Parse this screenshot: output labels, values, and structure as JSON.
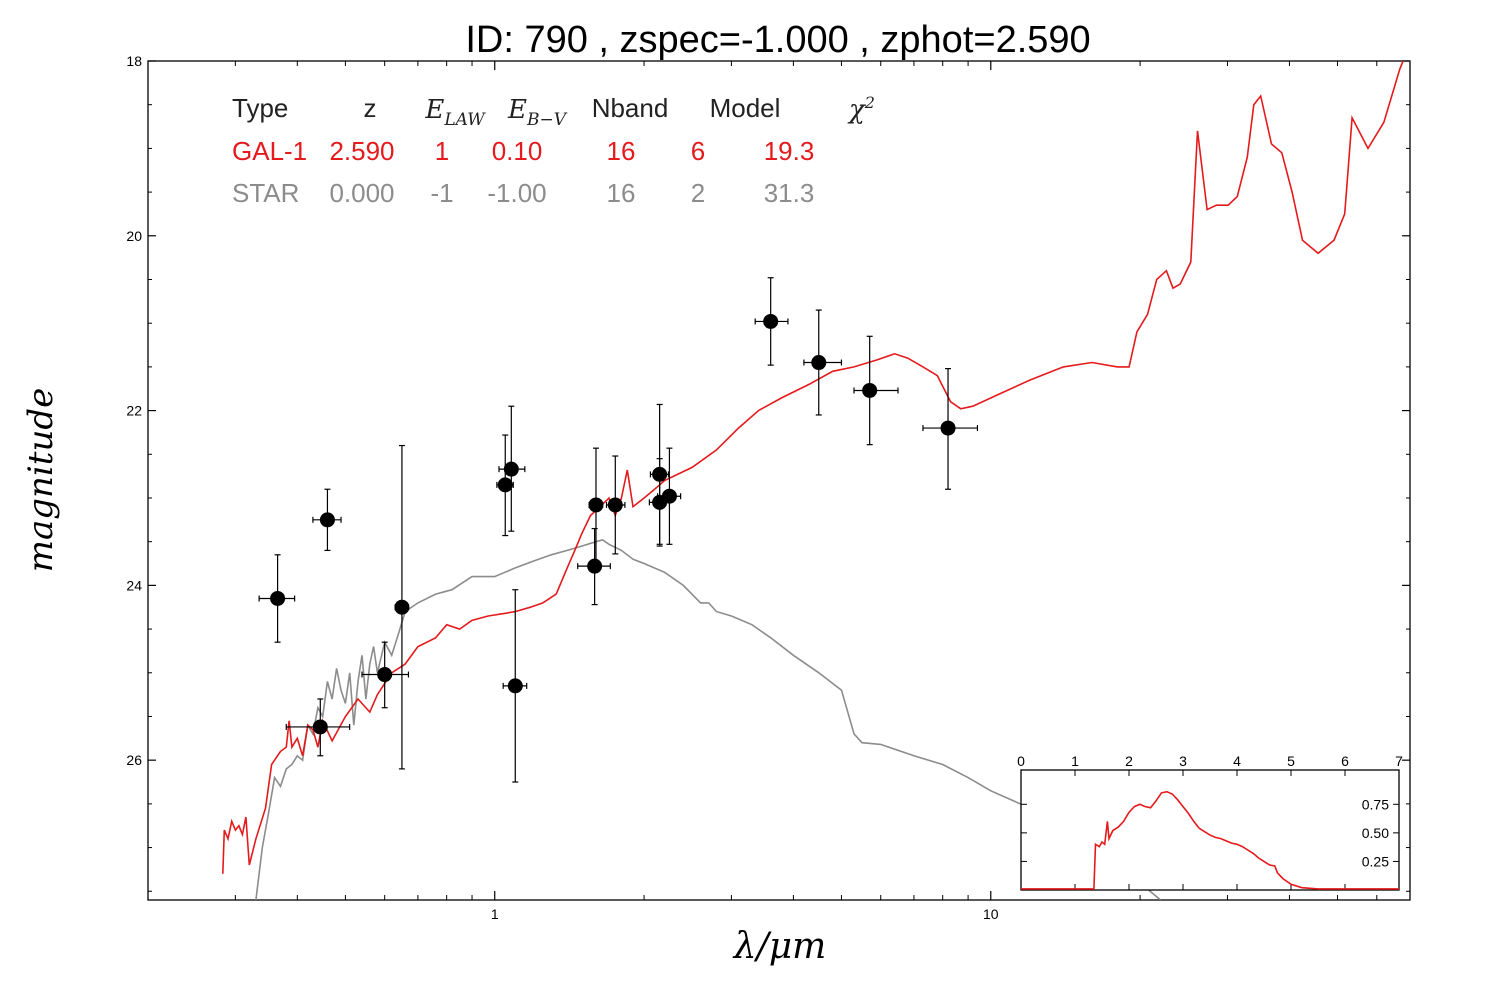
{
  "chart_data": {
    "type": "scatter",
    "title": "ID:  790   , zspec=-1.000 , zphot=2.590",
    "xlabel": "λ/μm",
    "ylabel": "magnitude",
    "x_scale": "log",
    "xlim": [
      0.2,
      70
    ],
    "ylim": [
      27.6,
      18
    ],
    "y_inverted": true,
    "xticks": [
      {
        "value": 1,
        "label": "1"
      },
      {
        "value": 10,
        "label": "10"
      }
    ],
    "yticks": [
      {
        "value": 18,
        "label": "18"
      },
      {
        "value": 20,
        "label": "20"
      },
      {
        "value": 22,
        "label": "22"
      },
      {
        "value": 24,
        "label": "24"
      },
      {
        "value": 26,
        "label": "26"
      }
    ],
    "colors": {
      "galaxy": "#e41a1c",
      "star": "#8c8c8c",
      "points": "#000000"
    },
    "legend_table": {
      "headers": [
        "Type",
        "z",
        "E_LAW",
        "E_B−V",
        "Nband",
        "Model",
        "χ²"
      ],
      "rows": [
        {
          "cells": [
            "GAL-1",
            "2.590",
            "1",
            "0.10",
            "16",
            "6",
            "19.3"
          ],
          "color": "#e41a1c"
        },
        {
          "cells": [
            "STAR",
            "0.000",
            "-1",
            "-1.00",
            "16",
            "2",
            "31.3"
          ],
          "color": "#8c8c8c"
        }
      ]
    },
    "points": [
      {
        "x": 0.365,
        "y": 24.15,
        "xerr": [
          0.335,
          0.395
        ],
        "yerr": [
          23.65,
          24.65
        ]
      },
      {
        "x": 0.445,
        "y": 25.62,
        "xerr": [
          0.38,
          0.51
        ],
        "yerr": [
          25.3,
          25.95
        ]
      },
      {
        "x": 0.46,
        "y": 23.25,
        "xerr": [
          0.43,
          0.49
        ],
        "yerr": [
          22.9,
          23.6
        ]
      },
      {
        "x": 0.6,
        "y": 25.02,
        "xerr": [
          0.54,
          0.67
        ],
        "yerr": [
          24.65,
          25.4
        ]
      },
      {
        "x": 0.65,
        "y": 24.25,
        "xerr": [
          0.63,
          0.67
        ],
        "yerr": [
          22.4,
          26.1
        ]
      },
      {
        "x": 1.05,
        "y": 22.85,
        "xerr": [
          1.01,
          1.09
        ],
        "yerr": [
          22.28,
          23.43
        ]
      },
      {
        "x": 1.08,
        "y": 22.67,
        "xerr": [
          1.02,
          1.15
        ],
        "yerr": [
          21.95,
          23.38
        ]
      },
      {
        "x": 1.1,
        "y": 25.15,
        "xerr": [
          1.04,
          1.16
        ],
        "yerr": [
          24.05,
          26.25
        ]
      },
      {
        "x": 1.59,
        "y": 23.78,
        "xerr": [
          1.47,
          1.71
        ],
        "yerr": [
          23.35,
          24.22
        ]
      },
      {
        "x": 1.6,
        "y": 23.08,
        "xerr": [
          1.55,
          1.65
        ],
        "yerr": [
          22.43,
          23.73
        ]
      },
      {
        "x": 1.75,
        "y": 23.08,
        "xerr": [
          1.68,
          1.83
        ],
        "yerr": [
          22.52,
          23.64
        ]
      },
      {
        "x": 2.15,
        "y": 22.73,
        "xerr": [
          2.06,
          2.24
        ],
        "yerr": [
          21.93,
          23.53
        ]
      },
      {
        "x": 2.15,
        "y": 23.05,
        "xerr": [
          2.05,
          2.25
        ],
        "yerr": [
          22.55,
          23.55
        ]
      },
      {
        "x": 2.25,
        "y": 22.98,
        "xerr": [
          2.13,
          2.37
        ],
        "yerr": [
          22.43,
          23.53
        ]
      },
      {
        "x": 3.6,
        "y": 20.98,
        "xerr": [
          3.35,
          3.9
        ],
        "yerr": [
          20.48,
          21.48
        ]
      },
      {
        "x": 4.5,
        "y": 21.45,
        "xerr": [
          4.2,
          5.0
        ],
        "yerr": [
          20.85,
          22.05
        ]
      },
      {
        "x": 5.7,
        "y": 21.77,
        "xerr": [
          5.3,
          6.5
        ],
        "yerr": [
          21.15,
          22.39
        ]
      },
      {
        "x": 8.2,
        "y": 22.2,
        "xerr": [
          7.3,
          9.4
        ],
        "yerr": [
          21.52,
          22.9
        ]
      }
    ],
    "galaxy_model": [
      [
        0.283,
        27.3
      ],
      [
        0.285,
        26.8
      ],
      [
        0.29,
        26.9
      ],
      [
        0.295,
        26.7
      ],
      [
        0.3,
        26.8
      ],
      [
        0.305,
        26.75
      ],
      [
        0.31,
        26.85
      ],
      [
        0.315,
        26.65
      ],
      [
        0.32,
        27.2
      ],
      [
        0.33,
        26.9
      ],
      [
        0.345,
        26.55
      ],
      [
        0.355,
        26.05
      ],
      [
        0.37,
        25.9
      ],
      [
        0.38,
        25.85
      ],
      [
        0.385,
        25.55
      ],
      [
        0.39,
        25.85
      ],
      [
        0.4,
        25.75
      ],
      [
        0.41,
        25.95
      ],
      [
        0.42,
        25.6
      ],
      [
        0.43,
        25.65
      ],
      [
        0.44,
        25.85
      ],
      [
        0.45,
        25.55
      ],
      [
        0.47,
        25.78
      ],
      [
        0.5,
        25.5
      ],
      [
        0.53,
        25.3
      ],
      [
        0.56,
        25.45
      ],
      [
        0.58,
        25.25
      ],
      [
        0.62,
        25.0
      ],
      [
        0.66,
        24.9
      ],
      [
        0.7,
        24.7
      ],
      [
        0.76,
        24.6
      ],
      [
        0.8,
        24.45
      ],
      [
        0.85,
        24.5
      ],
      [
        0.9,
        24.4
      ],
      [
        0.97,
        24.35
      ],
      [
        1.05,
        24.32
      ],
      [
        1.1,
        24.3
      ],
      [
        1.18,
        24.25
      ],
      [
        1.25,
        24.2
      ],
      [
        1.33,
        24.1
      ],
      [
        1.4,
        23.8
      ],
      [
        1.45,
        23.6
      ],
      [
        1.5,
        23.4
      ],
      [
        1.56,
        23.2
      ],
      [
        1.63,
        23.1
      ],
      [
        1.7,
        23.0
      ],
      [
        1.75,
        23.2
      ],
      [
        1.8,
        23.0
      ],
      [
        1.85,
        22.68
      ],
      [
        1.9,
        23.1
      ],
      [
        2.0,
        23.0
      ],
      [
        2.1,
        22.9
      ],
      [
        2.2,
        22.8
      ],
      [
        2.5,
        22.65
      ],
      [
        2.8,
        22.45
      ],
      [
        3.1,
        22.2
      ],
      [
        3.4,
        22.0
      ],
      [
        3.8,
        21.85
      ],
      [
        4.3,
        21.7
      ],
      [
        4.8,
        21.55
      ],
      [
        5.3,
        21.5
      ],
      [
        5.9,
        21.42
      ],
      [
        6.4,
        21.35
      ],
      [
        6.8,
        21.4
      ],
      [
        7.3,
        21.5
      ],
      [
        7.8,
        21.6
      ],
      [
        8.3,
        21.9
      ],
      [
        8.7,
        21.98
      ],
      [
        9.2,
        21.95
      ],
      [
        10.5,
        21.8
      ],
      [
        12.0,
        21.65
      ],
      [
        14.0,
        21.5
      ],
      [
        16.0,
        21.45
      ],
      [
        18.0,
        21.5
      ],
      [
        19.0,
        21.5
      ],
      [
        19.7,
        21.1
      ],
      [
        20.7,
        20.9
      ],
      [
        21.6,
        20.5
      ],
      [
        22.6,
        20.4
      ],
      [
        23.3,
        20.6
      ],
      [
        24.1,
        20.55
      ],
      [
        25.3,
        20.3
      ],
      [
        26.1,
        18.8
      ],
      [
        27.3,
        19.7
      ],
      [
        28.5,
        19.65
      ],
      [
        30.1,
        19.65
      ],
      [
        31.4,
        19.55
      ],
      [
        32.9,
        19.1
      ],
      [
        33.9,
        18.5
      ],
      [
        35.0,
        18.4
      ],
      [
        36.8,
        18.95
      ],
      [
        38.6,
        19.05
      ],
      [
        40.5,
        19.5
      ],
      [
        42.5,
        20.05
      ],
      [
        45.7,
        20.2
      ],
      [
        49.2,
        20.05
      ],
      [
        51.7,
        19.75
      ],
      [
        53.5,
        18.65
      ],
      [
        57.6,
        19.0
      ],
      [
        62.0,
        18.7
      ],
      [
        66.7,
        18.1
      ],
      [
        70.0,
        17.8
      ]
    ],
    "star_model": [
      [
        0.33,
        27.6
      ],
      [
        0.34,
        27.0
      ],
      [
        0.35,
        26.6
      ],
      [
        0.36,
        26.2
      ],
      [
        0.37,
        26.3
      ],
      [
        0.38,
        26.1
      ],
      [
        0.39,
        26.05
      ],
      [
        0.4,
        25.95
      ],
      [
        0.41,
        26.0
      ],
      [
        0.42,
        25.6
      ],
      [
        0.43,
        25.7
      ],
      [
        0.44,
        25.4
      ],
      [
        0.45,
        25.5
      ],
      [
        0.46,
        25.1
      ],
      [
        0.47,
        25.3
      ],
      [
        0.48,
        24.95
      ],
      [
        0.49,
        25.2
      ],
      [
        0.5,
        25.35
      ],
      [
        0.51,
        25.0
      ],
      [
        0.52,
        25.6
      ],
      [
        0.53,
        25.1
      ],
      [
        0.54,
        24.8
      ],
      [
        0.55,
        25.3
      ],
      [
        0.56,
        24.9
      ],
      [
        0.57,
        24.7
      ],
      [
        0.58,
        25.0
      ],
      [
        0.6,
        24.65
      ],
      [
        0.62,
        24.8
      ],
      [
        0.64,
        24.55
      ],
      [
        0.66,
        24.3
      ],
      [
        0.7,
        24.2
      ],
      [
        0.76,
        24.1
      ],
      [
        0.82,
        24.05
      ],
      [
        0.9,
        23.9
      ],
      [
        1.0,
        23.9
      ],
      [
        1.1,
        23.8
      ],
      [
        1.2,
        23.72
      ],
      [
        1.3,
        23.65
      ],
      [
        1.4,
        23.6
      ],
      [
        1.5,
        23.55
      ],
      [
        1.6,
        23.5
      ],
      [
        1.65,
        23.48
      ],
      [
        1.7,
        23.53
      ],
      [
        1.8,
        23.6
      ],
      [
        1.9,
        23.7
      ],
      [
        2.0,
        23.75
      ],
      [
        2.2,
        23.85
      ],
      [
        2.4,
        24.0
      ],
      [
        2.6,
        24.2
      ],
      [
        2.7,
        24.2
      ],
      [
        2.8,
        24.3
      ],
      [
        3.0,
        24.35
      ],
      [
        3.3,
        24.45
      ],
      [
        3.6,
        24.6
      ],
      [
        4.0,
        24.8
      ],
      [
        4.5,
        25.0
      ],
      [
        5.0,
        25.2
      ],
      [
        5.3,
        25.7
      ],
      [
        5.5,
        25.8
      ],
      [
        6.0,
        25.82
      ],
      [
        7.0,
        25.95
      ],
      [
        8.0,
        26.05
      ],
      [
        9.0,
        26.2
      ],
      [
        10.0,
        26.35
      ],
      [
        12.0,
        26.55
      ],
      [
        14.0,
        26.75
      ],
      [
        16.0,
        26.95
      ],
      [
        19.0,
        27.3
      ],
      [
        22.0,
        27.6
      ]
    ],
    "inset": {
      "xlim": [
        0,
        7
      ],
      "ylim": [
        0,
        1.05
      ],
      "xticks": [
        {
          "value": 0,
          "label": "0"
        },
        {
          "value": 1,
          "label": "1"
        },
        {
          "value": 2,
          "label": "2"
        },
        {
          "value": 3,
          "label": "3"
        },
        {
          "value": 4,
          "label": "4"
        },
        {
          "value": 5,
          "label": "5"
        },
        {
          "value": 6,
          "label": "6"
        },
        {
          "value": 7,
          "label": "7"
        }
      ],
      "yticks": [
        {
          "value": 0.25,
          "label": "0.25"
        },
        {
          "value": 0.5,
          "label": "0.50"
        },
        {
          "value": 0.75,
          "label": "0.75"
        }
      ],
      "pdz": [
        [
          0,
          0.01
        ],
        [
          1.35,
          0.01
        ],
        [
          1.38,
          0.4
        ],
        [
          1.45,
          0.38
        ],
        [
          1.5,
          0.42
        ],
        [
          1.55,
          0.4
        ],
        [
          1.6,
          0.6
        ],
        [
          1.63,
          0.45
        ],
        [
          1.7,
          0.52
        ],
        [
          1.8,
          0.55
        ],
        [
          1.9,
          0.6
        ],
        [
          2.0,
          0.68
        ],
        [
          2.1,
          0.73
        ],
        [
          2.2,
          0.75
        ],
        [
          2.3,
          0.73
        ],
        [
          2.4,
          0.72
        ],
        [
          2.5,
          0.78
        ],
        [
          2.6,
          0.85
        ],
        [
          2.7,
          0.86
        ],
        [
          2.8,
          0.84
        ],
        [
          2.9,
          0.79
        ],
        [
          3.0,
          0.73
        ],
        [
          3.1,
          0.67
        ],
        [
          3.2,
          0.6
        ],
        [
          3.3,
          0.54
        ],
        [
          3.4,
          0.51
        ],
        [
          3.5,
          0.48
        ],
        [
          3.6,
          0.46
        ],
        [
          3.7,
          0.45
        ],
        [
          3.8,
          0.43
        ],
        [
          3.9,
          0.41
        ],
        [
          4.0,
          0.4
        ],
        [
          4.1,
          0.38
        ],
        [
          4.2,
          0.35
        ],
        [
          4.3,
          0.32
        ],
        [
          4.4,
          0.28
        ],
        [
          4.5,
          0.25
        ],
        [
          4.6,
          0.22
        ],
        [
          4.7,
          0.21
        ],
        [
          4.75,
          0.15
        ],
        [
          4.85,
          0.1
        ],
        [
          5.0,
          0.05
        ],
        [
          5.2,
          0.02
        ],
        [
          5.5,
          0.01
        ],
        [
          7.0,
          0.01
        ]
      ]
    }
  }
}
